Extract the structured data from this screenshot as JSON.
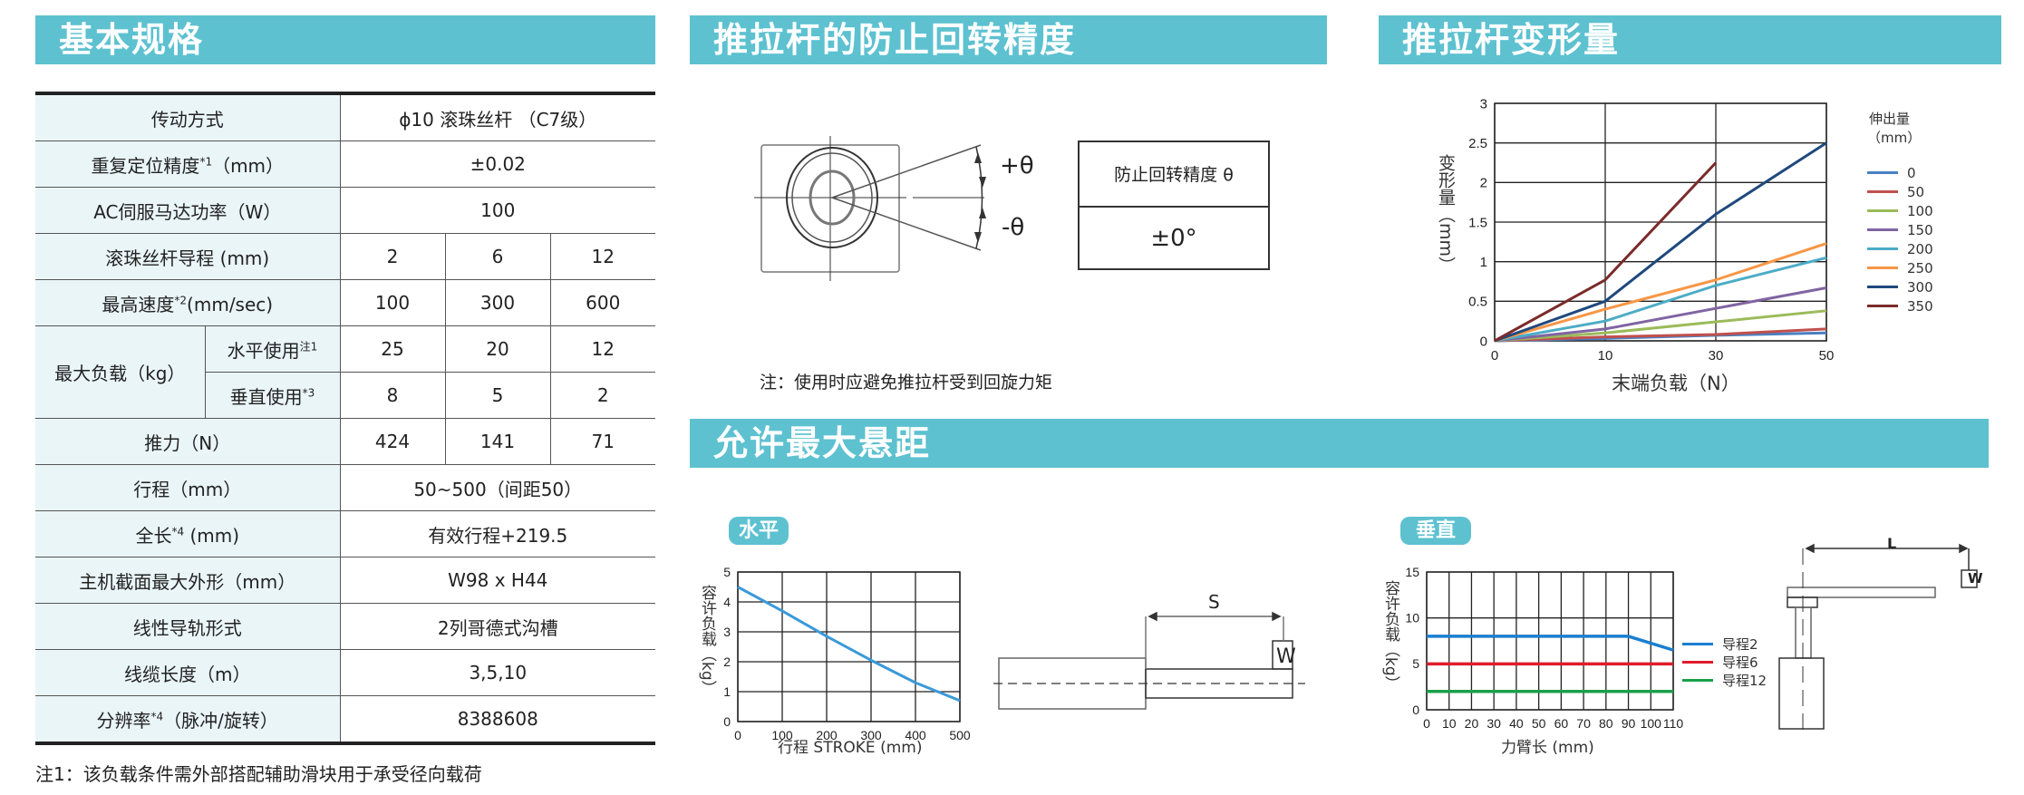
{
  "sections": {
    "spec": "基本规格",
    "rotation": "推拉杆的防止回转精度",
    "deformation": "推拉杆变形量",
    "overhang": "允许最大悬距"
  },
  "spec_table": {
    "drive": {
      "label": "传动方式",
      "value": "ϕ10 滚珠丝杆 （C7级）"
    },
    "repeat": {
      "label": "重复定位精度",
      "sup": "*1",
      "unit": "（mm）",
      "value": "±0.02"
    },
    "motor": {
      "label": "AC伺服马达功率（W）",
      "value": "100"
    },
    "lead": {
      "label": "滚珠丝杆导程 (mm)",
      "values": [
        "2",
        "6",
        "12"
      ]
    },
    "speed": {
      "label": "最高速度",
      "sup": "*2",
      "unit": "(mm/sec)",
      "values": [
        "100",
        "300",
        "600"
      ]
    },
    "maxload": {
      "label": "最大负载（kg）",
      "horizontal": {
        "label": "水平使用",
        "sup": "注1",
        "values": [
          "25",
          "20",
          "12"
        ]
      },
      "vertical": {
        "label": "垂直使用",
        "sup": "*3",
        "values": [
          "8",
          "5",
          "2"
        ]
      }
    },
    "thrust": {
      "label": "推力（N）",
      "values": [
        "424",
        "141",
        "71"
      ]
    },
    "stroke": {
      "label": "行程（mm）",
      "value": "50~500（间距50）"
    },
    "length": {
      "label": "全长",
      "sup": "*4",
      "unit": " (mm)",
      "value": "有效行程+219.5"
    },
    "section": {
      "label": "主机截面最大外形（mm）",
      "value": "W98 x H44"
    },
    "guide": {
      "label": "线性导轨形式",
      "value": "2列哥德式沟槽"
    },
    "cable": {
      "label": "线缆长度（m）",
      "value": "3,5,10"
    },
    "resolution": {
      "label": "分辨率",
      "sup": "*4",
      "unit": "（脉冲/旋转）",
      "value": "8388608"
    }
  },
  "spec_note": "注1：该负载条件需外部搭配辅助滑块用于承受径向载荷",
  "rotation": {
    "plus": "+θ",
    "minus": "-θ",
    "table_header": "防止回转精度 θ",
    "table_value": "±0°",
    "note": "注：使用时应避免推拉杆受到回旋力矩"
  },
  "overhang": {
    "horizontal_badge": "水平",
    "vertical_badge": "垂直",
    "s_label": "S",
    "l_label": "L",
    "w_label": "W"
  },
  "chart_data": [
    {
      "type": "line",
      "xlabel": "末端负载（N）",
      "ylabel": "变形量（mm）",
      "legend_title": "伸出量",
      "legend_unit": "（mm）",
      "legend_position": "right",
      "categories": [
        "0",
        "10",
        "30",
        "50"
      ],
      "ylim": [
        0,
        3
      ],
      "yticks": [
        "0",
        "0.5",
        "1",
        "1.5",
        "2",
        "2.5",
        "3"
      ],
      "grid": true,
      "series": [
        {
          "name": "0",
          "color": "#4a7fc1",
          "values": [
            0,
            0.03,
            0.07,
            0.1
          ]
        },
        {
          "name": "50",
          "color": "#c0504d",
          "values": [
            0,
            0.05,
            0.08,
            0.15
          ]
        },
        {
          "name": "100",
          "color": "#9bbb59",
          "values": [
            0,
            0.1,
            0.24,
            0.38
          ]
        },
        {
          "name": "150",
          "color": "#8064a2",
          "values": [
            0,
            0.15,
            0.41,
            0.67
          ]
        },
        {
          "name": "200",
          "color": "#4bacc6",
          "values": [
            0,
            0.25,
            0.7,
            1.05
          ]
        },
        {
          "name": "250",
          "color": "#f79646",
          "values": [
            0,
            0.4,
            0.77,
            1.23
          ]
        },
        {
          "name": "300",
          "color": "#1f497d",
          "values": [
            0,
            0.5,
            1.6,
            2.5
          ]
        },
        {
          "name": "350",
          "color": "#7b2b2b",
          "values": [
            0,
            0.77,
            2.25,
            null
          ]
        }
      ]
    },
    {
      "type": "line",
      "xlabel": "行程 STROKE (mm)",
      "ylabel": "容许负载（kg）",
      "xlim": [
        0,
        500
      ],
      "ylim": [
        0,
        5
      ],
      "xticks": [
        "0",
        "100",
        "200",
        "300",
        "400",
        "500"
      ],
      "yticks": [
        "0",
        "1",
        "2",
        "3",
        "4",
        "5"
      ],
      "grid": true,
      "series": [
        {
          "color": "#3a9ad9",
          "x": [
            0,
            100,
            200,
            300,
            400,
            450,
            500
          ],
          "y": [
            4.5,
            3.7,
            2.85,
            2.05,
            1.3,
            1.0,
            0.7
          ]
        }
      ]
    },
    {
      "type": "line",
      "xlabel": "力臂长 (mm)",
      "ylabel": "容许负载（kg）",
      "legend_position": "right",
      "xlim": [
        0,
        110
      ],
      "ylim": [
        0,
        15
      ],
      "xticks": [
        "0",
        "10",
        "20",
        "30",
        "40",
        "50",
        "60",
        "70",
        "80",
        "90",
        "100",
        "110"
      ],
      "yticks": [
        "0",
        "5",
        "10",
        "15"
      ],
      "grid": true,
      "series": [
        {
          "name": "导程2",
          "color": "#1a7fd0",
          "x": [
            0,
            90,
            110
          ],
          "y": [
            8,
            8,
            6.5
          ]
        },
        {
          "name": "导程6",
          "color": "#e01c2a",
          "x": [
            0,
            110
          ],
          "y": [
            5,
            5
          ]
        },
        {
          "name": "导程12",
          "color": "#1aa04a",
          "x": [
            0,
            110
          ],
          "y": [
            2,
            2
          ]
        }
      ]
    }
  ]
}
